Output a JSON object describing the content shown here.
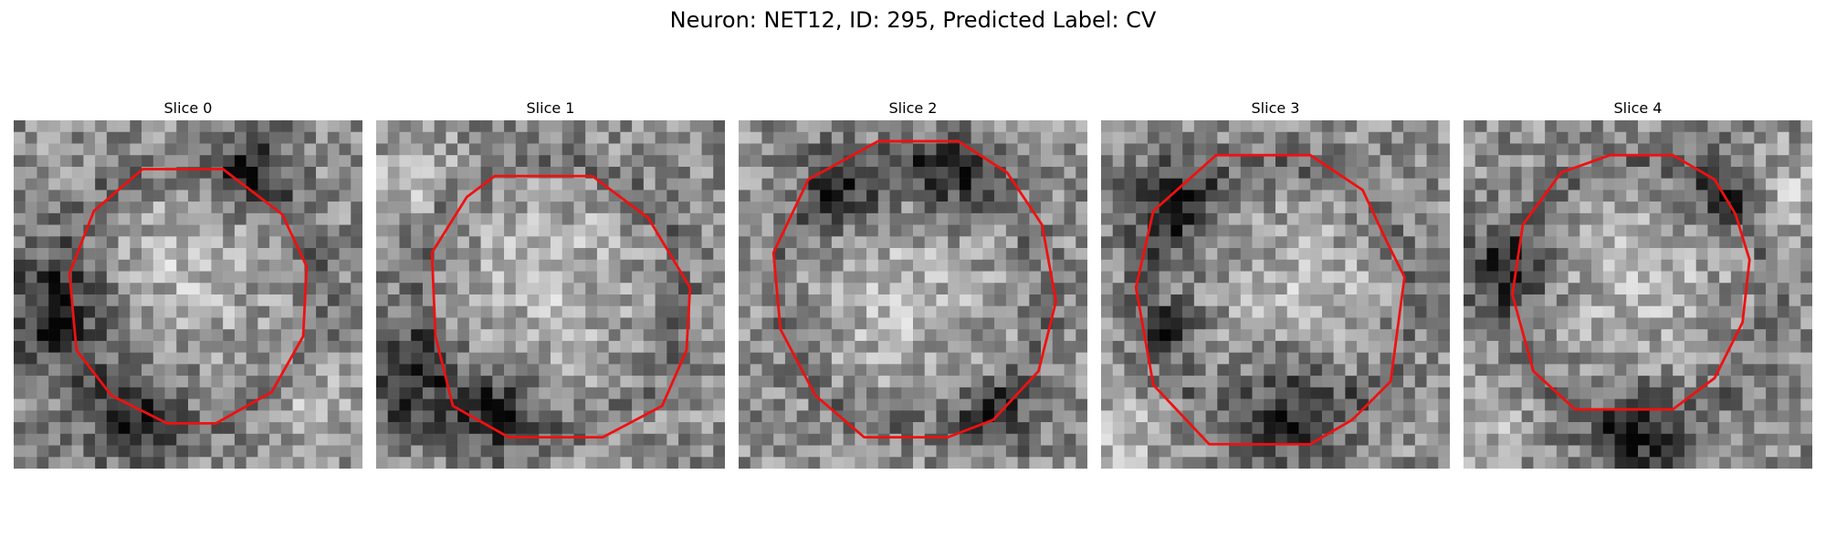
{
  "figure": {
    "title": "Neuron: NET12, ID: 295, Predicted Label: CV"
  },
  "panels": [
    {
      "title": "Slice 0",
      "seed": 11,
      "dark_regions": [
        [
          0.12,
          0.55,
          0.18
        ],
        [
          0.35,
          0.85,
          0.14
        ],
        [
          0.68,
          0.15,
          0.12
        ]
      ],
      "bright_regions": [
        [
          0.5,
          0.42,
          0.22
        ],
        [
          0.85,
          0.8,
          0.12
        ]
      ],
      "contour": [
        [
          0.37,
          0.14
        ],
        [
          0.6,
          0.14
        ],
        [
          0.77,
          0.27
        ],
        [
          0.84,
          0.42
        ],
        [
          0.83,
          0.62
        ],
        [
          0.74,
          0.78
        ],
        [
          0.58,
          0.87
        ],
        [
          0.44,
          0.87
        ],
        [
          0.28,
          0.79
        ],
        [
          0.18,
          0.66
        ],
        [
          0.16,
          0.44
        ],
        [
          0.23,
          0.26
        ]
      ]
    },
    {
      "title": "Slice 1",
      "seed": 23,
      "dark_regions": [
        [
          0.08,
          0.75,
          0.16
        ],
        [
          0.35,
          0.85,
          0.12
        ]
      ],
      "bright_regions": [
        [
          0.5,
          0.45,
          0.25
        ],
        [
          0.1,
          0.15,
          0.12
        ]
      ],
      "contour": [
        [
          0.34,
          0.16
        ],
        [
          0.62,
          0.16
        ],
        [
          0.78,
          0.28
        ],
        [
          0.9,
          0.48
        ],
        [
          0.89,
          0.66
        ],
        [
          0.82,
          0.82
        ],
        [
          0.65,
          0.91
        ],
        [
          0.38,
          0.91
        ],
        [
          0.22,
          0.82
        ],
        [
          0.17,
          0.62
        ],
        [
          0.16,
          0.38
        ],
        [
          0.26,
          0.22
        ]
      ]
    },
    {
      "title": "Slice 2",
      "seed": 37,
      "dark_regions": [
        [
          0.3,
          0.2,
          0.12
        ],
        [
          0.6,
          0.15,
          0.12
        ],
        [
          0.75,
          0.85,
          0.1
        ]
      ],
      "bright_regions": [
        [
          0.45,
          0.5,
          0.25
        ]
      ],
      "contour": [
        [
          0.4,
          0.06
        ],
        [
          0.63,
          0.06
        ],
        [
          0.77,
          0.15
        ],
        [
          0.87,
          0.3
        ],
        [
          0.91,
          0.52
        ],
        [
          0.86,
          0.72
        ],
        [
          0.73,
          0.86
        ],
        [
          0.6,
          0.91
        ],
        [
          0.36,
          0.91
        ],
        [
          0.22,
          0.79
        ],
        [
          0.12,
          0.6
        ],
        [
          0.1,
          0.38
        ],
        [
          0.2,
          0.17
        ]
      ]
    },
    {
      "title": "Slice 3",
      "seed": 49,
      "dark_regions": [
        [
          0.2,
          0.25,
          0.14
        ],
        [
          0.55,
          0.82,
          0.16
        ],
        [
          0.2,
          0.6,
          0.08
        ]
      ],
      "bright_regions": [
        [
          0.58,
          0.5,
          0.22
        ],
        [
          0.05,
          0.9,
          0.12
        ]
      ],
      "contour": [
        [
          0.33,
          0.1
        ],
        [
          0.6,
          0.1
        ],
        [
          0.75,
          0.2
        ],
        [
          0.82,
          0.35
        ],
        [
          0.87,
          0.45
        ],
        [
          0.83,
          0.75
        ],
        [
          0.72,
          0.86
        ],
        [
          0.6,
          0.93
        ],
        [
          0.31,
          0.93
        ],
        [
          0.15,
          0.76
        ],
        [
          0.1,
          0.48
        ],
        [
          0.15,
          0.26
        ]
      ]
    },
    {
      "title": "Slice 4",
      "seed": 61,
      "dark_regions": [
        [
          0.12,
          0.42,
          0.13
        ],
        [
          0.5,
          0.92,
          0.14
        ],
        [
          0.75,
          0.2,
          0.1
        ]
      ],
      "bright_regions": [
        [
          0.5,
          0.45,
          0.22
        ],
        [
          0.92,
          0.2,
          0.12
        ],
        [
          0.05,
          0.85,
          0.12
        ]
      ],
      "contour": [
        [
          0.42,
          0.1
        ],
        [
          0.6,
          0.1
        ],
        [
          0.72,
          0.17
        ],
        [
          0.78,
          0.27
        ],
        [
          0.82,
          0.4
        ],
        [
          0.8,
          0.58
        ],
        [
          0.72,
          0.74
        ],
        [
          0.6,
          0.83
        ],
        [
          0.32,
          0.83
        ],
        [
          0.2,
          0.72
        ],
        [
          0.14,
          0.5
        ],
        [
          0.17,
          0.3
        ],
        [
          0.28,
          0.15
        ]
      ]
    }
  ],
  "colors": {
    "contour": "#ee1111",
    "background": "#ffffff"
  }
}
